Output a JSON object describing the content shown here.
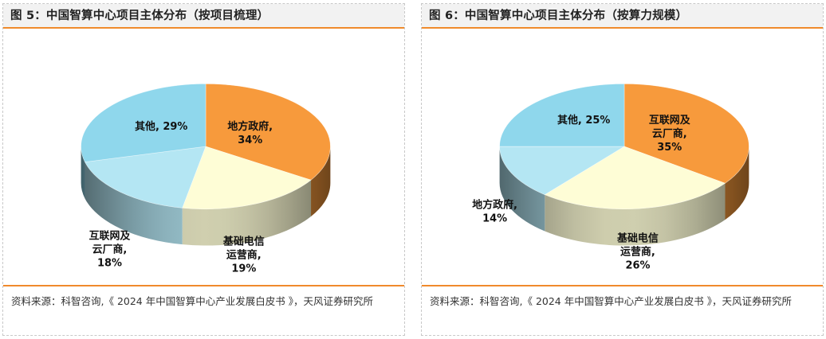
{
  "chart_data": [
    {
      "type": "pie",
      "title": "图 5：中国智算中心项目主体分布（按项目梳理）",
      "source": "资料来源：科智咨询,《 2024 年中国智算中心产业发展白皮书 》，天风证券研究所",
      "categories": [
        "地方政府",
        "基础电信运营商",
        "互联网及云厂商",
        "其他"
      ],
      "values": [
        34,
        19,
        18,
        29
      ],
      "labels": [
        [
          "地方政府,",
          "34%"
        ],
        [
          "基础电信",
          "运营商,",
          "19%"
        ],
        [
          "互联网及",
          "云厂商,",
          "18%"
        ],
        [
          "其他, 29%"
        ]
      ],
      "colors": [
        "#f79a3c",
        "#fefdd6",
        "#b4e6f3",
        "#8fd7ec"
      ]
    },
    {
      "type": "pie",
      "title": "图 6：中国智算中心项目主体分布（按算力规模）",
      "source": "资料来源：科智咨询,《 2024 年中国智算中心产业发展白皮书 》，天风证券研究所",
      "categories": [
        "互联网及云厂商",
        "基础电信运营商",
        "地方政府",
        "其他"
      ],
      "values": [
        35,
        26,
        14,
        25
      ],
      "labels": [
        [
          "互联网及",
          "云厂商,",
          "35%"
        ],
        [
          "基础电信",
          "运营商,",
          "26%"
        ],
        [
          "地方政府,",
          "14%"
        ],
        [
          "其他, 25%"
        ]
      ],
      "colors": [
        "#f79a3c",
        "#fefdd6",
        "#b4e6f3",
        "#8fd7ec"
      ]
    }
  ]
}
